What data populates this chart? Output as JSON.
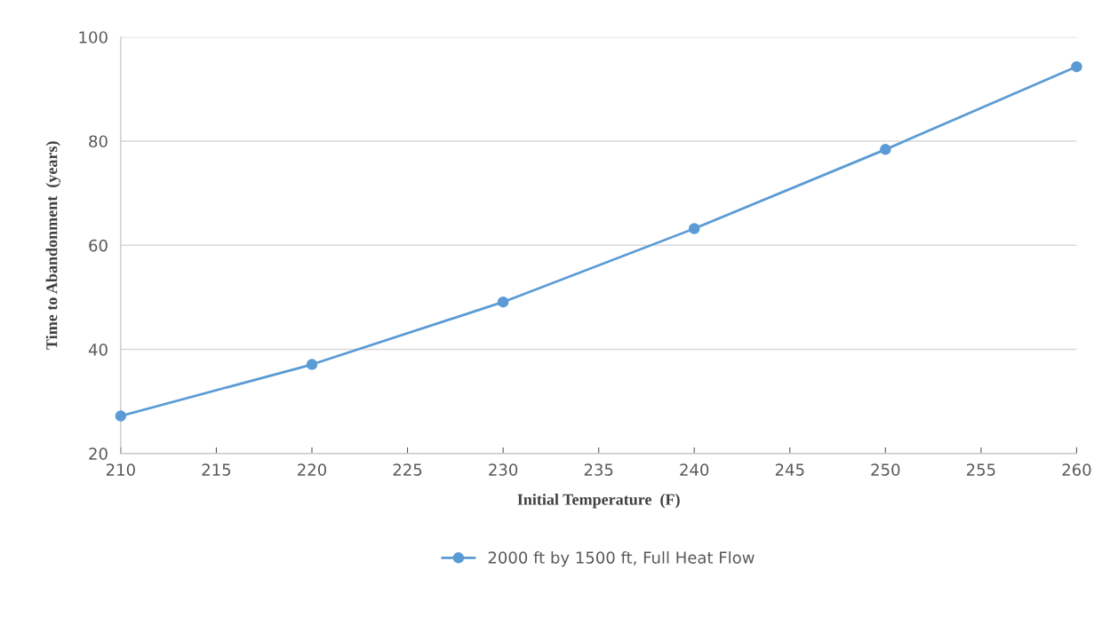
{
  "chart_data": {
    "type": "line",
    "xlabel": "Initial Temperature  (F)",
    "ylabel": "Time to Abandonment  (years)",
    "x": [
      210,
      220,
      230,
      240,
      250,
      260
    ],
    "series": [
      {
        "name": "2000 ft by 1500 ft, Full Heat Flow",
        "color": "#5b9bd5",
        "values": [
          27.2,
          37.1,
          49.1,
          63.2,
          78.4,
          94.3
        ]
      }
    ],
    "xlim": [
      210,
      260
    ],
    "xticks": [
      210,
      215,
      220,
      225,
      230,
      235,
      240,
      245,
      250,
      255,
      260
    ],
    "ylim": [
      20,
      100
    ],
    "yticks": [
      20,
      40,
      60,
      80,
      100
    ],
    "grid": "y",
    "legend": "bottom",
    "marker": "circle",
    "line_style": "solid"
  }
}
